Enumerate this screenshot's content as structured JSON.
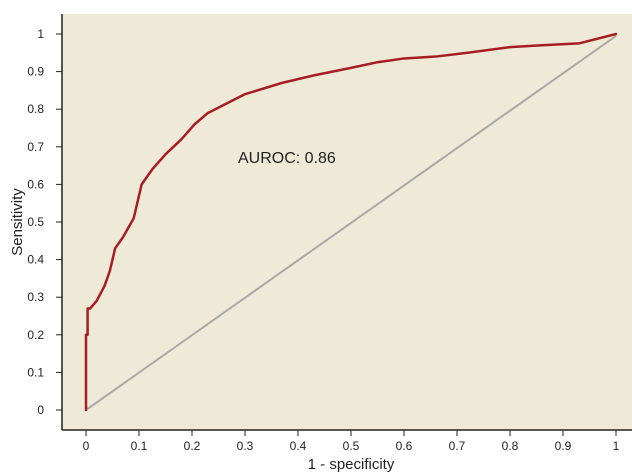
{
  "chart_data": {
    "type": "line",
    "title": "",
    "xlabel": "1 - specificity",
    "ylabel": "Sensitivity",
    "xlim": [
      0,
      1
    ],
    "ylim": [
      0,
      1
    ],
    "grid": false,
    "legend": "none",
    "x_ticks": [
      0,
      0.1,
      0.2,
      0.3,
      0.4,
      0.5,
      0.6,
      0.7,
      0.8,
      0.9,
      1
    ],
    "x_tick_labels": [
      "0",
      "0.1",
      "0.2",
      "0.3",
      "0.4",
      "0.5",
      "0.6",
      "0.7",
      "0.8",
      "0.9",
      "1"
    ],
    "y_ticks": [
      0,
      0.1,
      0.2,
      0.3,
      0.4,
      0.5,
      0.6,
      0.7,
      0.8,
      0.9,
      1
    ],
    "y_tick_labels": [
      "0",
      "0.1",
      "0.2",
      "0.3",
      "0.4",
      "0.5",
      "0.6",
      "0.7",
      "0.8",
      "0.9",
      "1"
    ],
    "annotation": "AUROC: 0.86",
    "colors": {
      "background": "#efe9d8",
      "roc": "#a61e22",
      "reference": "#a9a9a9",
      "axis": "#222222"
    },
    "series": [
      {
        "values": [
          [
            0,
            0
          ],
          [
            0,
            0.2
          ],
          [
            0.003,
            0.2
          ],
          [
            0.003,
            0.27
          ],
          [
            0.008,
            0.27
          ],
          [
            0.02,
            0.29
          ],
          [
            0.035,
            0.33
          ],
          [
            0.045,
            0.37
          ],
          [
            0.055,
            0.43
          ],
          [
            0.07,
            0.46
          ],
          [
            0.09,
            0.51
          ],
          [
            0.105,
            0.6
          ],
          [
            0.125,
            0.64
          ],
          [
            0.15,
            0.68
          ],
          [
            0.18,
            0.72
          ],
          [
            0.205,
            0.76
          ],
          [
            0.23,
            0.79
          ],
          [
            0.3,
            0.84
          ],
          [
            0.37,
            0.87
          ],
          [
            0.43,
            0.89
          ],
          [
            0.5,
            0.91
          ],
          [
            0.55,
            0.925
          ],
          [
            0.6,
            0.935
          ],
          [
            0.66,
            0.94
          ],
          [
            0.72,
            0.95
          ],
          [
            0.8,
            0.965
          ],
          [
            0.86,
            0.97
          ],
          [
            0.93,
            0.975
          ],
          [
            1,
            1
          ]
        ]
      },
      {
        "values": [
          [
            0,
            0
          ],
          [
            1,
            0.995
          ]
        ]
      }
    ]
  }
}
